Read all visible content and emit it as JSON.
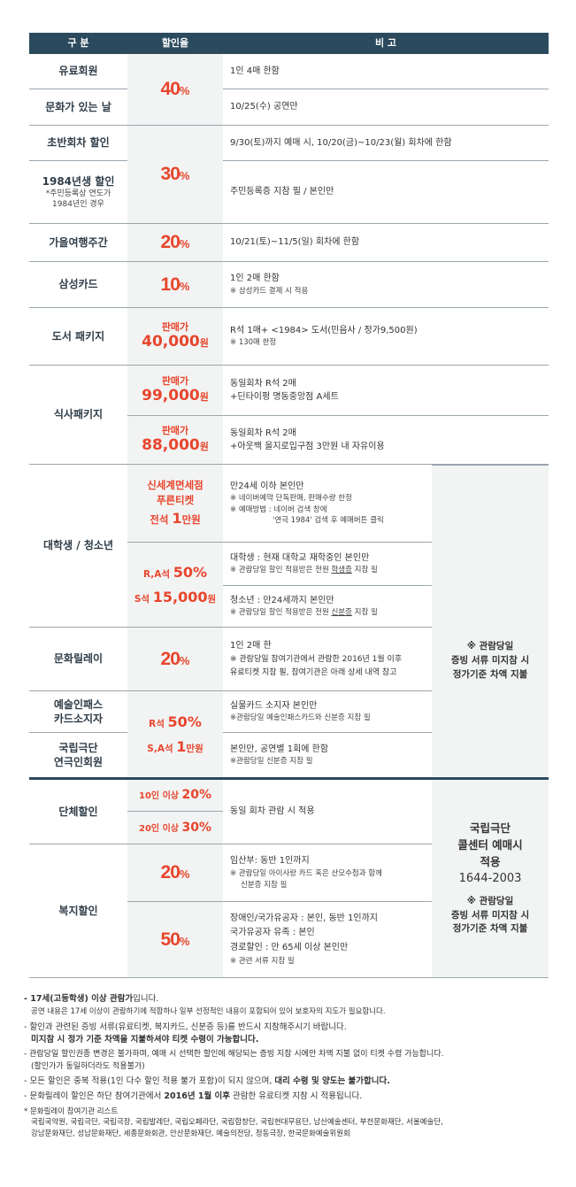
{
  "header": {
    "col1": "구 분",
    "col2": "할인율",
    "col3": "비 고"
  },
  "rows": {
    "r1": {
      "name": "유료회원",
      "note": "1인 4매 한함"
    },
    "r2": {
      "name": "문화가 있는 날",
      "note": "10/25(수) 공연만"
    },
    "p40": {
      "value": "40",
      "unit": "%"
    },
    "r3": {
      "name": "초반회차 할인",
      "note": "9/30(토)까지 예매 시, 10/20(금)~10/23(월) 회차에 한함"
    },
    "r4": {
      "name": "1984년생 할인",
      "sub1": "*주민등록상 연도가",
      "sub2": "1984년인 경우",
      "note": "주민등록증 지참 필 / 본인만"
    },
    "p30": {
      "value": "30",
      "unit": "%"
    },
    "r5": {
      "name": "가을여행주간",
      "value": "20",
      "unit": "%",
      "note": "10/21(토)~11/5(일) 회차에 한함"
    },
    "r6": {
      "name": "삼성카드",
      "value": "10",
      "unit": "%",
      "note": "1인 2매 한함",
      "sub": "※ 삼성카드 결제 시 적용"
    },
    "r7": {
      "name": "도서 패키지",
      "label": "판매가",
      "price": "40,000",
      "won": "원",
      "note": "R석 1매+ <1984> 도서(민음사 / 정가9,500원)",
      "sub": "※ 130매 한정"
    },
    "r8": {
      "name": "식사패키지",
      "a": {
        "label": "판매가",
        "price": "99,000",
        "won": "원",
        "line1": "동일회차 R석 2매",
        "line2": "+딘타이펑 명동중앙점 A세트"
      },
      "b": {
        "label": "판매가",
        "price": "88,000",
        "won": "원",
        "line1": "동일회차 R석 2매",
        "line2": "+아웃백 을지로입구점 3만원 내 자유이용"
      }
    },
    "r9": {
      "name": "대학생 / 청소년",
      "a": {
        "l1": "신세계면세점",
        "l2": "푸른티켓",
        "l3a": "전석 ",
        "l3b": "1",
        "l3c": "만원",
        "n1": "만24세 이하 본인만",
        "n2": "※ 네이버예약 단독판매, 판매수량 한정",
        "n3": "※ 예매방법 : 네이버 검색 창에",
        "n4": "'연극 1984' 검색 후 예매버튼 클릭"
      },
      "b": {
        "l1a": "R,A석 ",
        "l1b": "50%",
        "l2a": "S석 ",
        "l2b": "15,000",
        "l2c": "원"
      },
      "c": {
        "n1": "대학생 : 현재 대학교 재학중인 본인만",
        "n2a": "※ 관람당일 할인 적용받은 전원 ",
        "n2b": "학생증",
        "n2c": " 지참 필"
      },
      "d": {
        "n1": "청소년 : 만24세까지 본인만",
        "n2a": "※ 관람당일 할인 적용받은 전원 ",
        "n2b": "신분증",
        "n2c": " 지참 필"
      }
    },
    "side1": {
      "l1": "※ 관람당일",
      "l2": "증빙 서류 미지참 시",
      "l3": "정가기준 차액 지불"
    },
    "r10": {
      "name": "문화릴레이",
      "value": "20",
      "unit": "%",
      "n1": "1인 2매 한",
      "n2": "※ 관람당일 참여기관에서 관람한 2016년 1월 이후",
      "n3": "유료티켓 지참 필, 참여기관은 아래 상세 내역 참고"
    },
    "r11": {
      "name1": "예술인패스",
      "name2": "카드소지자",
      "n1": "실물카드 소지자 본인만",
      "n2": "※관람당일 예술인패스카드와 신분증 지참 필"
    },
    "r12": {
      "name1": "국립극단",
      "name2": "연극인회원",
      "n1": "본인만, 공연별 1회에 한함",
      "n2": "※관람당일 신분증 지참 필"
    },
    "p1112": {
      "l1a": "R석 ",
      "l1b": "50%",
      "l2a": "S,A석 ",
      "l2b": "1",
      "l2c": "만원"
    },
    "r13": {
      "name": "단체할인",
      "a1": "10인 이상 ",
      "a2": "20%",
      "b1": "20인 이상 ",
      "b2": "30%",
      "note": "동일 회차 관람 시 적용"
    },
    "r14": {
      "name": "복지할인",
      "a": {
        "value": "20",
        "unit": "%",
        "n1": "임산부: 동반 1인까지",
        "n2": "※ 관람당일 아이사랑 카드 혹은 산모수첩과 함께",
        "n3": "신분증 지참 필"
      },
      "b": {
        "value": "50",
        "unit": "%",
        "n1": "장애인/국가유공자 : 본인, 동반 1인까지",
        "n2": "국가유공자 유족 : 본인",
        "n3": "경로할인 : 만 65세 이상 본인만",
        "n4": "※ 관련 서류 지참 필"
      }
    },
    "side2": {
      "l1": "국립극단",
      "l2": "콜센터 예매시",
      "l3": "적용",
      "phone": "1644-2003",
      "l4": "※ 관람당일",
      "l5": "증빙 서류 미지참 시",
      "l6": "정가기준 차액 지불"
    }
  },
  "notes": {
    "n1a": "- 17세(고등학생) 이상 관람가",
    "n1b": "입니다.",
    "n1sub": "공연 내용은 17세 이상이 관람하기에 적합하나 일부 선정적인 내용이 포함되어 있어 보호자의 지도가 필요합니다.",
    "n2": "- 할인과 관련된 증빙 서류(유료티켓, 복지카드, 신분증 등)를 반드시 지참해주시기 바랍니다.",
    "n2sub": "미지참 시 정가 기준 차액을 지불하셔야 티켓 수령이 가능합니다.",
    "n3": "- 관람당일 할인권종 변경은 불가하며, 예매 시 선택한 할인에 해당되는 증빙 지참 시에만 차액 지불 없이 티켓 수령 가능합니다.",
    "n3sub": "(할인가가 동일하더라도 적용불가)",
    "n4a": "- 모든 할인은 중복 적용(1인 다수 할인 적용 불가 포함)이 되지 않으며, ",
    "n4b": "대리 수령 및 양도는 불가합니다.",
    "n5a": "- 문화릴레이 할인은 하단 참여기관에서 ",
    "n5b": "2016년 1월 이후",
    "n5c": " 관람한 유료티켓 지참 시 적용됩니다.",
    "n6": "* 문화릴레이 참여기관 리스트",
    "n6a": "국립국악원, 국립극단, 국립극장, 국립발레단, 국립오페라단, 국립합창단, 국립현대무용단, 남산예술센터, 부천문화재단, 서울예술단,",
    "n6b": "강남문화재단, 성남문화재단, 세종문화회관, 안산문화재단, 예술의전당, 정동극장, 한국문화예술위원회"
  },
  "colors": {
    "header": "#2b4a5e",
    "accent": "#e8452c",
    "panel": "#f2f4f4"
  }
}
